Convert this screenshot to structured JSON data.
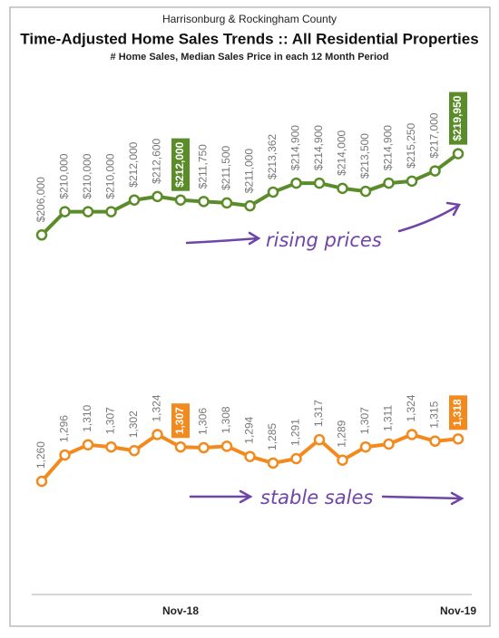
{
  "header": {
    "supertitle": "Harrisonburg & Rockingham County",
    "title": "Time-Adjusted Home Sales Trends  ::  All Residential Properties",
    "subtitle": "# Home Sales, Median Sales Price in each 12 Month Period"
  },
  "chart_data": [
    {
      "type": "line",
      "color": "#5b8c2a",
      "ylim": [
        195000,
        237000
      ],
      "highlight": [
        6,
        18
      ],
      "annotation": "rising prices",
      "values": [
        206000,
        210000,
        210000,
        210000,
        212000,
        212600,
        212000,
        211750,
        211500,
        211000,
        213362,
        214900,
        214900,
        214000,
        213500,
        214900,
        215250,
        217000,
        219950
      ],
      "value_labels": [
        "$206,000",
        "$210,000",
        "$210,000",
        "$210,000",
        "$212,000",
        "$212,600",
        "$212,000",
        "$211,750",
        "$211,500",
        "$211,000",
        "$213,362",
        "$214,900",
        "$214,900",
        "$214,000",
        "$213,500",
        "$214,900",
        "$215,250",
        "$217,000",
        "$219,950"
      ]
    },
    {
      "type": "line",
      "color": "#f28a1e",
      "ylim": [
        1125,
        1435
      ],
      "highlight": [
        6,
        18
      ],
      "annotation": "stable sales",
      "categories": [
        null,
        null,
        null,
        null,
        null,
        null,
        "Nov-18",
        null,
        null,
        null,
        null,
        null,
        null,
        null,
        null,
        null,
        null,
        null,
        "Nov-19"
      ],
      "values": [
        1260,
        1296,
        1310,
        1307,
        1302,
        1324,
        1307,
        1306,
        1308,
        1294,
        1285,
        1291,
        1317,
        1289,
        1307,
        1311,
        1324,
        1315,
        1318
      ],
      "value_labels": [
        "1,260",
        "1,296",
        "1,310",
        "1,307",
        "1,302",
        "1,324",
        "1,307",
        "1,306",
        "1,308",
        "1,294",
        "1,285",
        "1,291",
        "1,317",
        "1,289",
        "1,307",
        "1,311",
        "1,324",
        "1,315",
        "1,318"
      ]
    }
  ]
}
